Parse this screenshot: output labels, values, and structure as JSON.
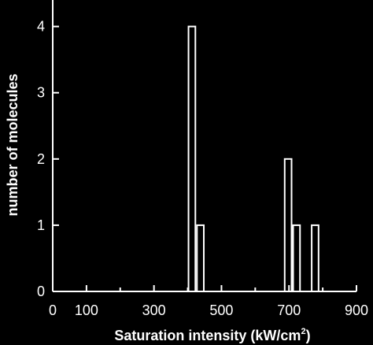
{
  "chart_data": {
    "type": "bar",
    "title": "",
    "xlabel": "Saturation intensity (kW/cm",
    "xlabel_superscript": "2",
    "xlabel_suffix": ")",
    "ylabel": "number of molecules",
    "xlim": [
      0,
      900
    ],
    "ylim": [
      0,
      4.4
    ],
    "grid": false,
    "x_ticks": [
      0,
      100,
      300,
      500,
      700,
      900
    ],
    "y_ticks": [
      0,
      1,
      2,
      3,
      4
    ],
    "bin_width": 25,
    "series": [
      {
        "bins": [
          {
            "x_start": 400,
            "x_end": 425,
            "value": 4
          },
          {
            "x_start": 425,
            "x_end": 450,
            "value": 1
          },
          {
            "x_start": 685,
            "x_end": 710,
            "value": 2
          },
          {
            "x_start": 710,
            "x_end": 735,
            "value": 1
          },
          {
            "x_start": 765,
            "x_end": 790,
            "value": 1
          }
        ]
      }
    ],
    "colors": {
      "background": "#000000",
      "foreground": "#ffffff"
    }
  }
}
